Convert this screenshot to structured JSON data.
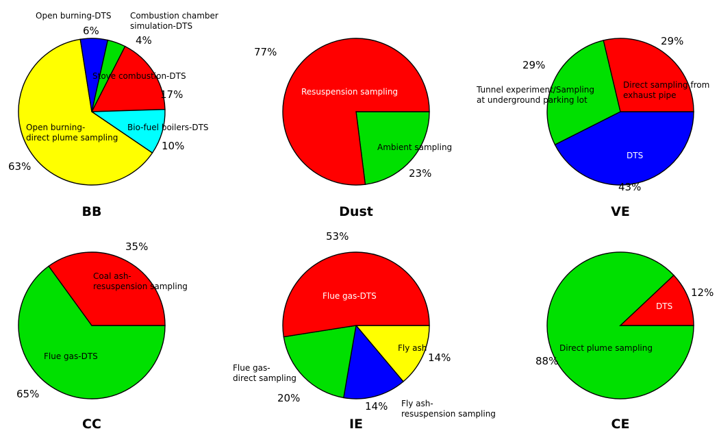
{
  "chart_data": [
    {
      "type": "pie",
      "title": "BB",
      "colors": [
        "#ff0000",
        "#00ffff",
        "#ffff00",
        "#0000ff",
        "#00e000"
      ],
      "slices": [
        {
          "label": "Stove combustion-DTS",
          "value": 17,
          "pct": "17%",
          "color": "#ff0000"
        },
        {
          "label": "Bio-fuel boilers-DTS",
          "value": 10,
          "pct": "10%",
          "color": "#00ffff"
        },
        {
          "label": "Open burning-\ndirect plume sampling",
          "value": 63,
          "pct": "63%",
          "color": "#ffff00"
        },
        {
          "label": "Open burning-DTS",
          "value": 6,
          "pct": "6%",
          "color": "#0000ff"
        },
        {
          "label": "Combustion chamber\nsimulation-DTS",
          "value": 4,
          "pct": "4%",
          "color": "#00e000"
        }
      ]
    },
    {
      "type": "pie",
      "title": "Dust",
      "slices": [
        {
          "label": "Ambient sampling",
          "value": 23,
          "pct": "23%",
          "color": "#00e000"
        },
        {
          "label": "Resuspension sampling",
          "value": 77,
          "pct": "77%",
          "color": "#ff0000"
        }
      ]
    },
    {
      "type": "pie",
      "title": "VE",
      "slices": [
        {
          "label": "DTS",
          "value": 43,
          "pct": "43%",
          "color": "#0000ff"
        },
        {
          "label": "Tunnel experiment/Sampling\nat underground parking lot",
          "value": 29,
          "pct": "29%",
          "color": "#00e000"
        },
        {
          "label": "Direct sampling from\nexhaust pipe",
          "value": 29,
          "pct": "29%",
          "color": "#ff0000"
        }
      ]
    },
    {
      "type": "pie",
      "title": "CC",
      "slices": [
        {
          "label": "Flue gas-DTS",
          "value": 65,
          "pct": "65%",
          "color": "#00e000"
        },
        {
          "label": "Coal ash-\nresuspension sampling",
          "value": 35,
          "pct": "35%",
          "color": "#ff0000"
        }
      ]
    },
    {
      "type": "pie",
      "title": "IE",
      "slices": [
        {
          "label": "Fly ash",
          "value": 14,
          "pct": "14%",
          "color": "#ffff00"
        },
        {
          "label": "Fly ash-\nresuspension sampling",
          "value": 14,
          "pct": "14%",
          "color": "#0000ff"
        },
        {
          "label": "Flue gas-\ndirect sampling",
          "value": 20,
          "pct": "20%",
          "color": "#00e000"
        },
        {
          "label": "Flue gas-DTS",
          "value": 53,
          "pct": "53%",
          "color": "#ff0000"
        }
      ]
    },
    {
      "type": "pie",
      "title": "CE",
      "slices": [
        {
          "label": "Direct plume sampling",
          "value": 88,
          "pct": "88%",
          "color": "#00e000"
        },
        {
          "label": "DTS",
          "value": 12,
          "pct": "12%",
          "color": "#ff0000"
        }
      ]
    }
  ]
}
